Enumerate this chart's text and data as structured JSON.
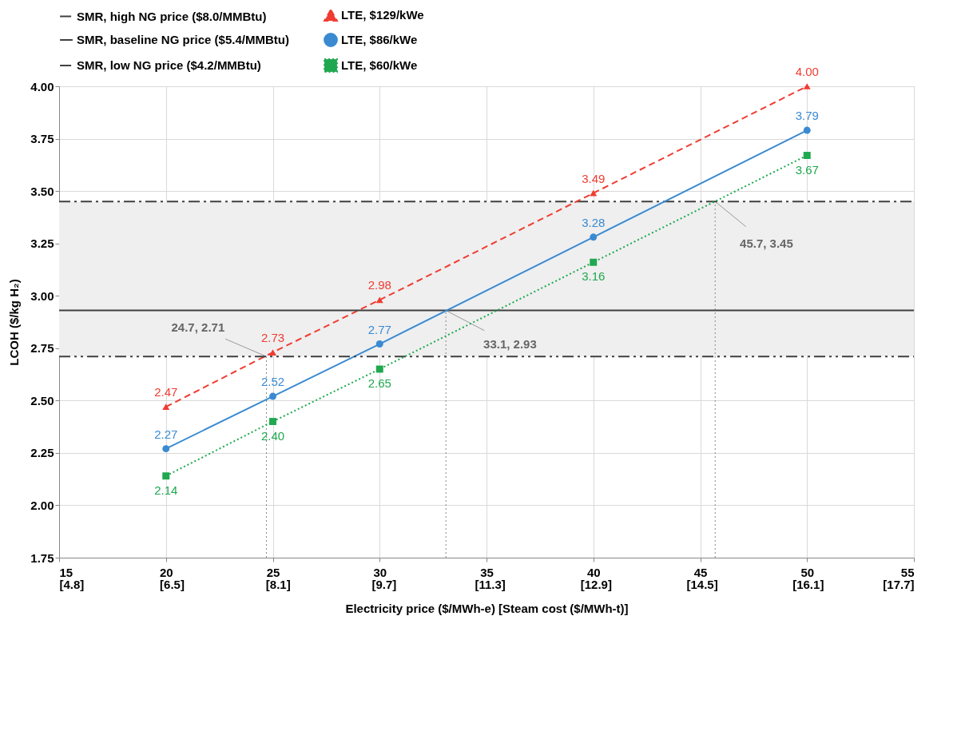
{
  "chart_data": {
    "type": "line",
    "xlabel": "Electricity price ($/MWh-e) [Steam cost ($/MWh-t)]",
    "ylabel": "LCOH ($/kg H₂)",
    "x": [
      20,
      25,
      30,
      40,
      50
    ],
    "series": [
      {
        "name": "SMR, high NG price ($8.0/MMBtu)",
        "color": "#404040",
        "x": [
          15,
          55
        ],
        "values": [
          3.45,
          3.45
        ],
        "line_style": "dashdot",
        "marker": "none"
      },
      {
        "name": "LTE, $129/kWe",
        "color": "#f03c32",
        "values": [
          2.47,
          2.73,
          2.98,
          3.49,
          4.0
        ],
        "value_labels": [
          "2.47",
          "2.73",
          "2.98",
          "3.49",
          "4.00"
        ],
        "line_style": "dashed",
        "marker": "triangle"
      },
      {
        "name": "SMR, baseline NG price ($5.4/MMBtu)",
        "color": "#404040",
        "x": [
          15,
          55
        ],
        "values": [
          2.93,
          2.93
        ],
        "line_style": "solid",
        "marker": "none"
      },
      {
        "name": "LTE, $86/kWe",
        "color": "#3a8ad2",
        "values": [
          2.27,
          2.52,
          2.77,
          3.28,
          3.79
        ],
        "value_labels": [
          "2.27",
          "2.52",
          "2.77",
          "3.28",
          "3.79"
        ],
        "line_style": "solid",
        "marker": "circle"
      },
      {
        "name": "SMR, low NG price ($4.2/MMBtu)",
        "color": "#404040",
        "x": [
          15,
          55
        ],
        "values": [
          2.71,
          2.71
        ],
        "line_style": "dashdotdot",
        "marker": "none"
      },
      {
        "name": "LTE, $60/kWe",
        "color": "#1fa84f",
        "values": [
          2.14,
          2.4,
          2.65,
          3.16,
          3.67
        ],
        "value_labels": [
          "2.14",
          "2.40",
          "2.65",
          "3.16",
          "3.67"
        ],
        "line_style": "dotted",
        "marker": "square"
      },
      {
        "color": "#888888",
        "x": [
          24.7,
          24.7
        ],
        "values": [
          1.75,
          2.71
        ],
        "line_style": "dotted"
      },
      {
        "color": "#888888",
        "x": [
          33.1,
          33.1
        ],
        "values": [
          1.75,
          2.93
        ],
        "line_style": "dotted"
      },
      {
        "color": "#888888",
        "x": [
          45.7,
          45.7
        ],
        "values": [
          1.75,
          3.45
        ],
        "line_style": "dotted"
      }
    ],
    "xlim": [
      15,
      55
    ],
    "xticks": [
      15,
      20,
      25,
      30,
      35,
      40,
      45,
      50,
      55
    ],
    "x2lim": [
      4.8,
      17.7
    ],
    "x2ticks": [
      {
        "value": 4.8,
        "label": "[4.8]"
      },
      {
        "value": 6.5,
        "label": "[6.5]"
      },
      {
        "value": 8.1,
        "label": "[8.1]"
      },
      {
        "value": 9.7,
        "label": "[9.7]"
      },
      {
        "value": 11.3,
        "label": "[11.3]"
      },
      {
        "value": 12.9,
        "label": "[12.9]"
      },
      {
        "value": 14.5,
        "label": "[14.5]"
      },
      {
        "value": 16.1,
        "label": "[16.1]"
      },
      {
        "value": 17.7,
        "label": "[17.7]"
      }
    ],
    "ylim": [
      1.75,
      4.0
    ],
    "yticks": [
      {
        "value": 1.75,
        "label": "1.75"
      },
      {
        "value": 2.0,
        "label": "2.00"
      },
      {
        "value": 2.25,
        "label": "2.25"
      },
      {
        "value": 2.5,
        "label": "2.50"
      },
      {
        "value": 2.75,
        "label": "2.75"
      },
      {
        "value": 3.0,
        "label": "3.00"
      },
      {
        "value": 3.25,
        "label": "3.25"
      },
      {
        "value": 3.5,
        "label": "3.50"
      },
      {
        "value": 3.75,
        "label": "3.75"
      },
      {
        "value": 4.0,
        "label": "4.00"
      }
    ],
    "bands": [
      {
        "axis": "y",
        "from": 2.71,
        "to": 3.45,
        "color": "#efefef"
      }
    ],
    "annotations": [
      {
        "text": "24.7, 2.71",
        "x": 24.7,
        "y": 2.71
      },
      {
        "text": "33.1, 2.93",
        "x": 33.1,
        "y": 2.93
      },
      {
        "text": "45.7, 3.45",
        "x": 45.7,
        "y": 3.45
      }
    ],
    "grid": true,
    "legend": "top"
  }
}
